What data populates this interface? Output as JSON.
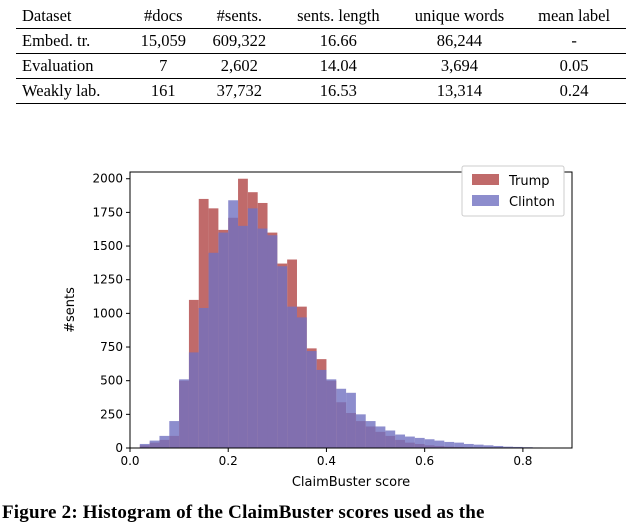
{
  "table": {
    "headers": [
      "Dataset",
      "#docs",
      "#sents.",
      "sents. length",
      "unique words",
      "mean label"
    ],
    "rows": [
      [
        "Embed. tr.",
        "15,059",
        "609,322",
        "16.66",
        "86,244",
        "-"
      ],
      [
        "Evaluation",
        "7",
        "2,602",
        "14.04",
        "3,694",
        "0.05"
      ],
      [
        "Weakly lab.",
        "161",
        "37,732",
        "16.53",
        "13,314",
        "0.24"
      ]
    ]
  },
  "chart_data": {
    "type": "histogram",
    "xlabel": "ClaimBuster score",
    "ylabel": "#sents",
    "xlim": [
      0.0,
      0.9
    ],
    "ylim": [
      0,
      2050
    ],
    "xticks": [
      "0.0",
      "0.2",
      "0.4",
      "0.6",
      "0.8"
    ],
    "yticks": [
      "0",
      "250",
      "500",
      "750",
      "1000",
      "1250",
      "1500",
      "1750",
      "2000"
    ],
    "legend_position": "top-right",
    "bin_start": 0.02,
    "bin_width": 0.02,
    "series": [
      {
        "name": "Trump",
        "color": "#c06a6a",
        "values": [
          20,
          40,
          60,
          90,
          500,
          1100,
          1850,
          1780,
          1620,
          1710,
          2000,
          1900,
          1820,
          1600,
          1370,
          1400,
          1050,
          740,
          660,
          500,
          340,
          260,
          200,
          160,
          120,
          90,
          60,
          40,
          30,
          20,
          15,
          10,
          8,
          5,
          4,
          3,
          2,
          1,
          0,
          0,
          0,
          0
        ]
      },
      {
        "name": "Clinton",
        "color": "#7070c0",
        "values": [
          30,
          55,
          90,
          200,
          510,
          710,
          1040,
          1450,
          1600,
          1840,
          1650,
          1780,
          1630,
          1580,
          1350,
          1050,
          970,
          720,
          580,
          510,
          440,
          410,
          250,
          200,
          160,
          130,
          100,
          85,
          75,
          65,
          55,
          45,
          40,
          30,
          25,
          20,
          15,
          10,
          8,
          6,
          4,
          2
        ]
      }
    ]
  },
  "caption": "Figure 2: Histogram of the ClaimBuster scores used as the"
}
